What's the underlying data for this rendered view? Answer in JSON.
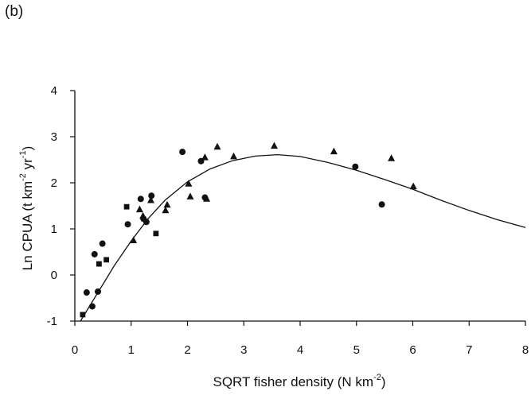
{
  "panel_label": "(b)",
  "chart_data": {
    "type": "scatter",
    "title": "",
    "xlabel": "SQRT fisher density (N km",
    "xlabel_sup": "-2",
    "xlabel_tail": ")",
    "ylabel": "Ln CPUA (t km",
    "ylabel_sup1": "-2",
    "ylabel_mid": " yr",
    "ylabel_sup2": "-1",
    "ylabel_tail": ")",
    "xlim": [
      0,
      8
    ],
    "ylim": [
      -1,
      4
    ],
    "x_ticks": [
      "0",
      "1",
      "2",
      "3",
      "4",
      "5",
      "6",
      "7",
      "8"
    ],
    "y_ticks": [
      "-1",
      "0",
      "1",
      "2",
      "3",
      "4"
    ],
    "grid": false,
    "series": [
      {
        "marker": "circle",
        "points": [
          [
            0.21,
            -0.38
          ],
          [
            0.31,
            -0.68
          ],
          [
            0.35,
            0.45
          ],
          [
            0.41,
            -0.36
          ],
          [
            0.49,
            0.68
          ],
          [
            0.94,
            1.1
          ],
          [
            1.17,
            1.65
          ],
          [
            1.22,
            1.22
          ],
          [
            1.27,
            1.15
          ],
          [
            1.36,
            1.72
          ],
          [
            1.91,
            2.67
          ],
          [
            2.24,
            2.47
          ],
          [
            2.31,
            1.68
          ],
          [
            4.98,
            2.35
          ],
          [
            5.45,
            1.53
          ]
        ]
      },
      {
        "marker": "square",
        "points": [
          [
            0.14,
            -0.86
          ],
          [
            0.43,
            0.24
          ],
          [
            0.56,
            0.33
          ],
          [
            0.92,
            1.48
          ],
          [
            1.44,
            0.9
          ]
        ]
      },
      {
        "marker": "triangle",
        "points": [
          [
            1.04,
            0.75
          ],
          [
            1.15,
            1.42
          ],
          [
            1.21,
            1.28
          ],
          [
            1.35,
            1.62
          ],
          [
            1.61,
            1.4
          ],
          [
            1.64,
            1.52
          ],
          [
            2.02,
            1.98
          ],
          [
            2.05,
            1.7
          ],
          [
            2.31,
            2.55
          ],
          [
            2.34,
            1.65
          ],
          [
            2.53,
            2.78
          ],
          [
            2.82,
            2.57
          ],
          [
            3.54,
            2.8
          ],
          [
            4.6,
            2.68
          ],
          [
            5.62,
            2.53
          ],
          [
            6.01,
            1.92
          ]
        ]
      }
    ],
    "fit_curve": {
      "type": "line",
      "points": [
        [
          0.1,
          -1.0
        ],
        [
          0.3,
          -0.6
        ],
        [
          0.5,
          -0.2
        ],
        [
          0.7,
          0.2
        ],
        [
          1.0,
          0.74
        ],
        [
          1.3,
          1.22
        ],
        [
          1.6,
          1.62
        ],
        [
          2.0,
          2.02
        ],
        [
          2.4,
          2.3
        ],
        [
          2.8,
          2.48
        ],
        [
          3.2,
          2.58
        ],
        [
          3.6,
          2.61
        ],
        [
          4.0,
          2.57
        ],
        [
          4.5,
          2.44
        ],
        [
          5.0,
          2.27
        ],
        [
          5.5,
          2.07
        ],
        [
          6.0,
          1.86
        ],
        [
          6.5,
          1.62
        ],
        [
          7.0,
          1.4
        ],
        [
          7.5,
          1.2
        ],
        [
          8.0,
          1.03
        ]
      ]
    }
  }
}
